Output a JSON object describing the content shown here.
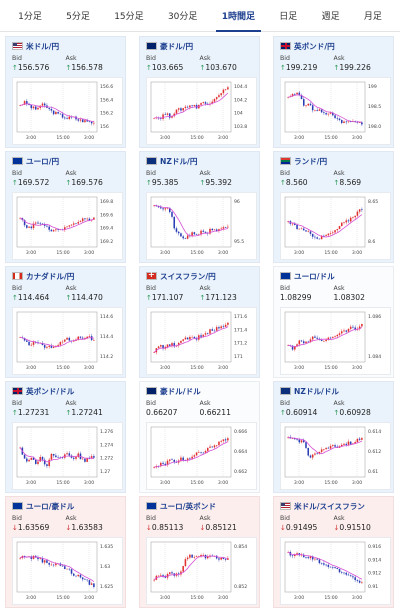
{
  "timeframe_tabs": [
    {
      "label": "1分足",
      "active": false
    },
    {
      "label": "5分足",
      "active": false
    },
    {
      "label": "15分足",
      "active": false
    },
    {
      "label": "30分足",
      "active": false
    },
    {
      "label": "1時間足",
      "active": true
    },
    {
      "label": "日足",
      "active": false
    },
    {
      "label": "週足",
      "active": false
    },
    {
      "label": "月足",
      "active": false
    }
  ],
  "labels": {
    "bid": "Bid",
    "ask": "Ask"
  },
  "colors": {
    "up": "#2e9a5a",
    "down": "#d03030",
    "candle_up": "#e03030",
    "candle_down": "#2b3db5",
    "ma": "#d64fd6",
    "title": "#1d3f8f"
  },
  "pairs": [
    {
      "name": "米ドル/円",
      "flag": "flag-us",
      "dir": "up",
      "bid": "156.576",
      "ask": "156.578",
      "y_ticks": [
        "156.6",
        "156.4",
        "156.2",
        "156"
      ],
      "x_ticks": [
        "3:00",
        "15:00",
        "3:00"
      ]
    },
    {
      "name": "豪ドル/円",
      "flag": "flag-au",
      "dir": "up",
      "bid": "103.665",
      "ask": "103.670",
      "y_ticks": [
        "104.4",
        "104.2",
        "104",
        "103.8"
      ],
      "x_ticks": [
        "3:00",
        "15:00",
        "3:00"
      ]
    },
    {
      "name": "英ポンド/円",
      "flag": "flag-gb",
      "dir": "up",
      "bid": "199.219",
      "ask": "199.226",
      "y_ticks": [
        "199",
        "198.5",
        "198.0"
      ],
      "x_ticks": [
        "3:00",
        "15:00",
        "3:00"
      ]
    },
    {
      "name": "ユーロ/円",
      "flag": "flag-eu",
      "dir": "up",
      "bid": "169.572",
      "ask": "169.576",
      "y_ticks": [
        "169.8",
        "169.6",
        "169.4",
        "169.2"
      ],
      "x_ticks": [
        "3:00",
        "15:00",
        "3:00"
      ]
    },
    {
      "name": "NZドル/円",
      "flag": "flag-nz",
      "dir": "up",
      "bid": "95.385",
      "ask": "95.392",
      "y_ticks": [
        "96",
        "95.5"
      ],
      "x_ticks": [
        "3:00",
        "15:00",
        "3:00"
      ]
    },
    {
      "name": "ランド/円",
      "flag": "flag-za",
      "dir": "up",
      "bid": "8.560",
      "ask": "8.569",
      "y_ticks": [
        "8.65",
        "8.6"
      ],
      "x_ticks": [
        "3:00",
        "15:00",
        "3:00"
      ]
    },
    {
      "name": "カナダドル/円",
      "flag": "flag-ca",
      "dir": "up",
      "bid": "114.464",
      "ask": "114.470",
      "y_ticks": [
        "114.6",
        "114.4",
        "114.2"
      ],
      "x_ticks": [
        "3:00",
        "15:00",
        "3:00"
      ]
    },
    {
      "name": "スイスフラン/円",
      "flag": "flag-ch",
      "dir": "up",
      "bid": "171.107",
      "ask": "171.123",
      "y_ticks": [
        "171.6",
        "171.4",
        "171.2",
        "171"
      ],
      "x_ticks": [
        "3:00",
        "15:00",
        "3:00"
      ]
    },
    {
      "name": "ユーロ/ドル",
      "flag": "flag-eu",
      "dir": "none",
      "bid": "1.08299",
      "ask": "1.08302",
      "y_ticks": [
        "1.086",
        "1.084"
      ],
      "x_ticks": [
        "3:00",
        "15:00",
        "3:00"
      ]
    },
    {
      "name": "英ポンド/ドル",
      "flag": "flag-gb",
      "dir": "up",
      "bid": "1.27231",
      "ask": "1.27241",
      "y_ticks": [
        "1.276",
        "1.274",
        "1.272",
        "1.27"
      ],
      "x_ticks": [
        "3:00",
        "15:00",
        "3:00"
      ]
    },
    {
      "name": "豪ドル/ドル",
      "flag": "flag-au",
      "dir": "none",
      "bid": "0.66207",
      "ask": "0.66211",
      "y_ticks": [
        "0.666",
        "0.664",
        "0.662"
      ],
      "x_ticks": [
        "3:00",
        "15:00",
        "3:00"
      ]
    },
    {
      "name": "NZドル/ドル",
      "flag": "flag-nz",
      "dir": "up",
      "bid": "0.60914",
      "ask": "0.60928",
      "y_ticks": [
        "0.614",
        "0.612",
        "0.61"
      ],
      "x_ticks": [
        "3:00",
        "15:00",
        "3:00"
      ]
    },
    {
      "name": "ユーロ/豪ドル",
      "flag": "flag-eu",
      "dir": "down",
      "bid": "1.63569",
      "ask": "1.63583",
      "y_ticks": [
        "1.635",
        "1.63",
        "1.625"
      ],
      "x_ticks": [
        "3:00",
        "15:00",
        "3:00"
      ]
    },
    {
      "name": "ユーロ/英ポンド",
      "flag": "flag-eu",
      "dir": "down",
      "bid": "0.85113",
      "ask": "0.85121",
      "y_ticks": [
        "0.854",
        "0.852"
      ],
      "x_ticks": [
        "3:00",
        "15:00",
        "3:00"
      ]
    },
    {
      "name": "米ドル/スイスフラン",
      "flag": "flag-us",
      "dir": "down",
      "bid": "0.91495",
      "ask": "0.91510",
      "y_ticks": [
        "0.916",
        "0.914",
        "0.912",
        "0.91"
      ],
      "x_ticks": [
        "3:00",
        "15:00",
        "3:00"
      ]
    }
  ]
}
